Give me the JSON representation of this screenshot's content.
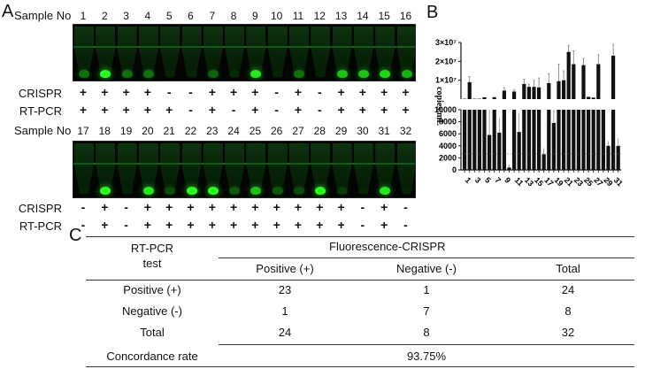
{
  "panel_a": {
    "label": "A",
    "sample_no_label": "Sample No",
    "crispr_label": "CRISPR",
    "rtpcr_label": "RT-PCR",
    "top": {
      "samples": [
        "1",
        "2",
        "3",
        "4",
        "5",
        "6",
        "7",
        "8",
        "9",
        "10",
        "11",
        "12",
        "13",
        "14",
        "15",
        "16"
      ],
      "crispr": [
        "+",
        "+",
        "+",
        "+",
        "-",
        "-",
        "+",
        "+",
        "+",
        "-",
        "+",
        "-",
        "+",
        "+",
        "+",
        "+"
      ],
      "rtpcr": [
        "+",
        "+",
        "+",
        "+",
        "+",
        "-",
        "+",
        "-",
        "+",
        "-",
        "+",
        "-",
        "+",
        "+",
        "+",
        "+"
      ],
      "fluorescence": [
        0.6,
        1.0,
        0.6,
        0.6,
        0.1,
        0.1,
        0.55,
        0.25,
        0.95,
        0.1,
        0.6,
        0.1,
        0.85,
        0.85,
        0.9,
        0.8
      ]
    },
    "bottom": {
      "samples": [
        "17",
        "18",
        "19",
        "20",
        "21",
        "22",
        "23",
        "24",
        "25",
        "26",
        "27",
        "28",
        "29",
        "30",
        "31",
        "32"
      ],
      "crispr": [
        "-",
        "+",
        "-",
        "+",
        "+",
        "+",
        "+",
        "+",
        "+",
        "+",
        "+",
        "+",
        "+",
        "-",
        "+",
        "-"
      ],
      "rtpcr": [
        "-",
        "+",
        "-",
        "+",
        "+",
        "+",
        "+",
        "+",
        "+",
        "+",
        "+",
        "+",
        "+",
        "-",
        "+",
        "-"
      ],
      "fluorescence": [
        0.1,
        1.0,
        0.1,
        0.95,
        0.45,
        1.0,
        1.0,
        0.5,
        0.85,
        0.5,
        0.45,
        1.0,
        0.35,
        0.1,
        0.95,
        0.1
      ]
    }
  },
  "panel_b": {
    "label": "B"
  },
  "panel_c": {
    "label": "C",
    "header": {
      "row_header_line1": "RT-PCR",
      "row_header_line2": "test",
      "group": "Fluorescence-CRISPR",
      "columns": [
        "Positive (+)",
        "Negative (-)",
        "Total"
      ]
    },
    "rows": [
      {
        "label": "Positive (+)",
        "values": [
          "23",
          "1",
          "24"
        ]
      },
      {
        "label": "Negative (-)",
        "values": [
          "1",
          "7",
          "8"
        ]
      },
      {
        "label": "Total",
        "values": [
          "24",
          "8",
          "32"
        ]
      }
    ],
    "concordance_label": "Concordance rate",
    "concordance_value": "93.75%"
  },
  "chart_data": {
    "type": "bar",
    "title": "",
    "xlabel": "",
    "ylabel": "copies/mL",
    "categories": [
      "1",
      "2",
      "3",
      "4",
      "5",
      "6",
      "7",
      "8",
      "9",
      "10",
      "11",
      "12",
      "13",
      "14",
      "15",
      "16",
      "17",
      "18",
      "19",
      "20",
      "21",
      "22",
      "23",
      "24",
      "25",
      "26",
      "27",
      "28",
      "29",
      "30",
      "31",
      "32"
    ],
    "x_tick_labels": [
      "1",
      "3",
      "5",
      "7",
      "9",
      "11",
      "13",
      "15",
      "17",
      "19",
      "21",
      "23",
      "25",
      "27",
      "29",
      "31"
    ],
    "broken_axis": true,
    "upper_segment": {
      "ylim": [
        0,
        30000000
      ],
      "ticks": [
        "1×10⁷",
        "2×10⁷",
        "3×10⁷"
      ],
      "values_x1e7": [
        0.02,
        0.9,
        0.02,
        0.02,
        0.1,
        0.0,
        0.1,
        0.0,
        0.45,
        0.0,
        0.4,
        0.0,
        0.8,
        0.65,
        0.65,
        0.62,
        0.0,
        0.85,
        0.0,
        0.95,
        1.0,
        2.5,
        1.85,
        0.0,
        1.8,
        0.12,
        0.08,
        1.85,
        0.0,
        0.0,
        2.3,
        0.0
      ],
      "errors_x1e7": [
        0,
        0.3,
        0,
        0,
        0,
        0,
        0,
        0,
        0.15,
        0,
        0.1,
        0,
        0.25,
        0.15,
        0.35,
        0.5,
        0,
        0.5,
        0,
        0.9,
        0.5,
        0.35,
        0.7,
        0,
        0.35,
        0,
        0,
        0.5,
        0,
        0,
        0.6,
        0
      ]
    },
    "lower_segment": {
      "ylim": [
        0,
        10000
      ],
      "ticks": [
        "0",
        "2000",
        "4000",
        "6000",
        "8000",
        "10000"
      ],
      "values": [
        10000,
        10000,
        10000,
        10000,
        10000,
        5800,
        10000,
        6200,
        10000,
        400,
        10000,
        6300,
        10000,
        10000,
        10000,
        10000,
        2600,
        10000,
        7800,
        10000,
        10000,
        10000,
        10000,
        10000,
        10000,
        10000,
        10000,
        10000,
        10000,
        4000,
        10000,
        4000
      ],
      "errors": [
        0,
        0,
        0,
        0,
        0,
        4200,
        0,
        2400,
        0,
        500,
        0,
        3200,
        0,
        0,
        0,
        0,
        1000,
        0,
        2200,
        0,
        0,
        0,
        0,
        0,
        0,
        0,
        0,
        0,
        0,
        800,
        0,
        1200
      ]
    },
    "grid": false,
    "legend": null
  }
}
